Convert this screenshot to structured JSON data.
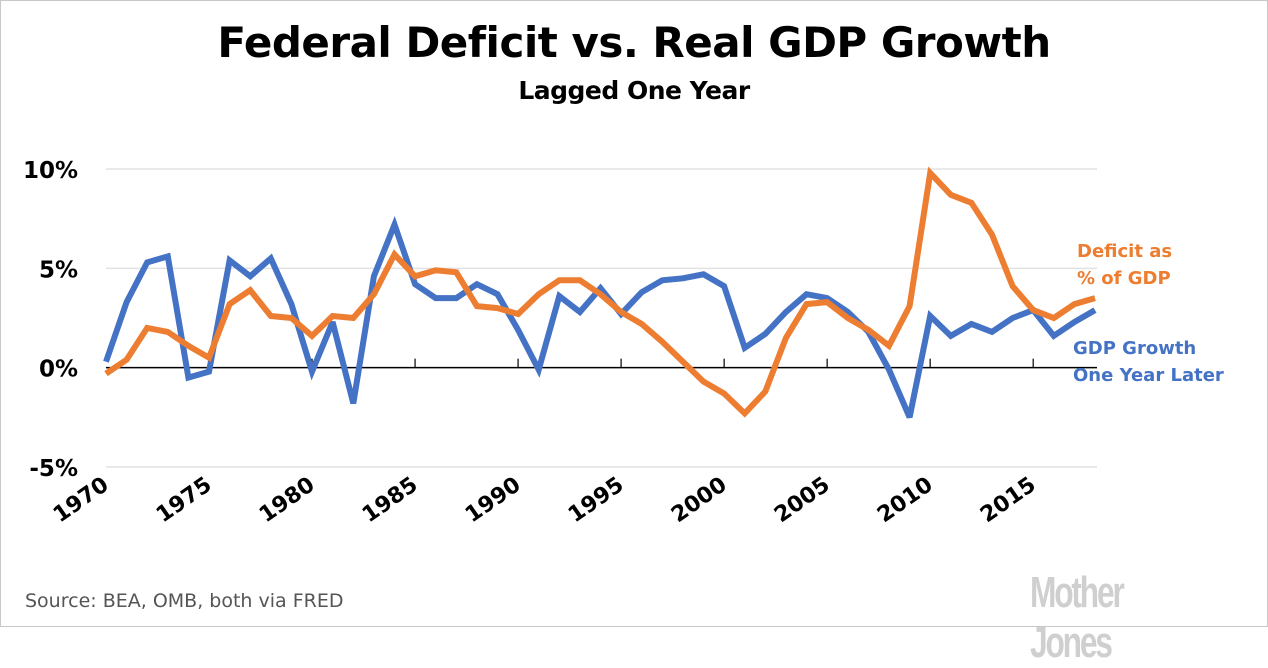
{
  "chart_data": {
    "type": "line",
    "title": "Federal Deficit vs. Real GDP Growth",
    "subtitle": "Lagged One Year",
    "xlabel": "",
    "ylabel": "",
    "x": [
      1970,
      1971,
      1972,
      1973,
      1974,
      1975,
      1976,
      1977,
      1978,
      1979,
      1980,
      1981,
      1982,
      1983,
      1984,
      1985,
      1986,
      1987,
      1988,
      1989,
      1990,
      1991,
      1992,
      1993,
      1994,
      1995,
      1996,
      1997,
      1998,
      1999,
      2000,
      2001,
      2002,
      2003,
      2004,
      2005,
      2006,
      2007,
      2008,
      2009,
      2010,
      2011,
      2012,
      2013,
      2014,
      2015,
      2016,
      2017,
      2018
    ],
    "xlim": [
      1970,
      2018
    ],
    "x_ticks": [
      "1970",
      "1975",
      "1980",
      "1985",
      "1990",
      "1995",
      "2000",
      "2005",
      "2010",
      "2015"
    ],
    "ylim": [
      -5,
      10
    ],
    "y_ticks": [
      "10%",
      "5%",
      "0%",
      "-5%"
    ],
    "y_tick_values": [
      10,
      5,
      0,
      -5
    ],
    "grid": true,
    "legend": "inline-right",
    "series": [
      {
        "name": "GDP Growth One Year Later",
        "label_lines": [
          "GDP Growth",
          "One Year Later"
        ],
        "color": "#4472c4",
        "values": [
          0.3,
          3.3,
          5.3,
          5.6,
          -0.5,
          -0.2,
          5.4,
          4.6,
          5.5,
          3.2,
          -0.2,
          2.3,
          -1.8,
          4.6,
          7.2,
          4.2,
          3.5,
          3.5,
          4.2,
          3.7,
          1.9,
          -0.1,
          3.6,
          2.8,
          4.0,
          2.7,
          3.8,
          4.4,
          4.5,
          4.7,
          4.1,
          1.0,
          1.7,
          2.8,
          3.7,
          3.5,
          2.8,
          1.8,
          -0.1,
          -2.5,
          2.6,
          1.6,
          2.2,
          1.8,
          2.5,
          2.9,
          1.6,
          2.3,
          2.9
        ]
      },
      {
        "name": "Deficit as % of GDP",
        "label_lines": [
          "Deficit as",
          "% of GDP"
        ],
        "color": "#ed7d31",
        "values": [
          -0.3,
          0.4,
          2.0,
          1.8,
          1.1,
          0.5,
          3.2,
          3.9,
          2.6,
          2.5,
          1.6,
          2.6,
          2.5,
          3.7,
          5.7,
          4.6,
          4.9,
          4.8,
          3.1,
          3.0,
          2.7,
          3.7,
          4.4,
          4.4,
          3.7,
          2.8,
          2.2,
          1.3,
          0.3,
          -0.7,
          -1.3,
          -2.3,
          -1.2,
          1.5,
          3.2,
          3.3,
          2.5,
          1.9,
          1.1,
          3.1,
          9.8,
          8.7,
          8.3,
          6.7,
          4.1,
          2.9,
          2.5,
          3.2,
          3.5
        ]
      }
    ],
    "source": "Source: BEA, OMB, both via FRED",
    "logo": "Mother Jones"
  }
}
